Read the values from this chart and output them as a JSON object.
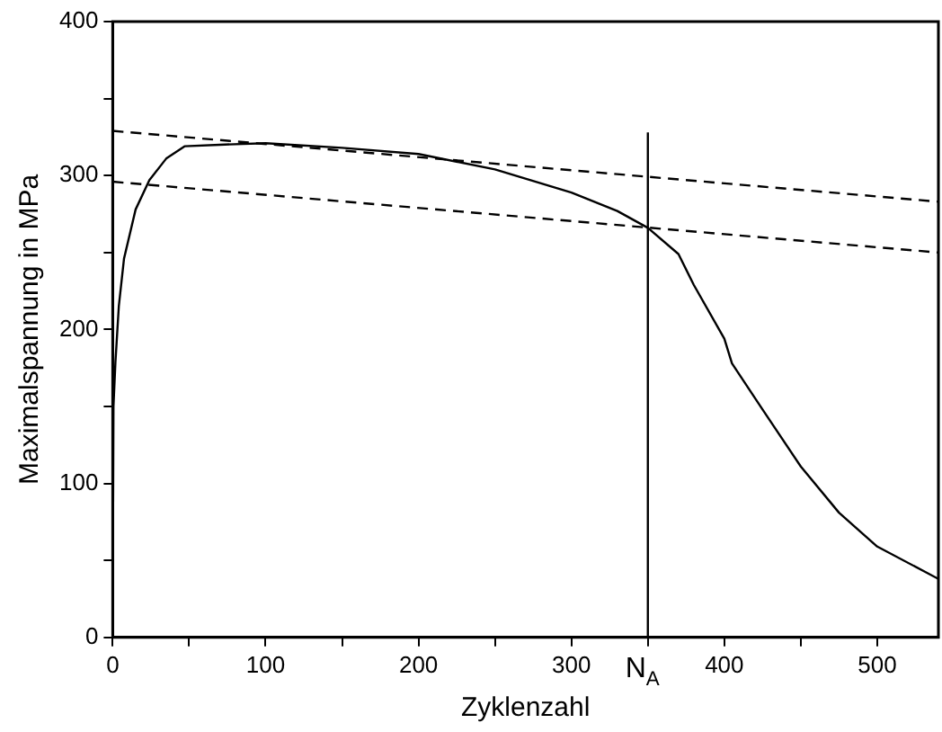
{
  "chart_data": {
    "type": "line",
    "xlabel": "Zyklenzahl",
    "ylabel": "Maximalspannung in MPa",
    "xlim": [
      0,
      540
    ],
    "ylim": [
      0,
      400
    ],
    "xticks": [
      0,
      {
        "value": 50,
        "label": null
      },
      100,
      {
        "value": 150,
        "label": null
      },
      200,
      {
        "value": 250,
        "label": null
      },
      300,
      {
        "value": 350,
        "label": null
      },
      400,
      {
        "value": 450,
        "label": null
      },
      500
    ],
    "yticks": [
      0,
      {
        "value": 50,
        "label": null
      },
      100,
      {
        "value": 150,
        "label": null
      },
      200,
      {
        "value": 250,
        "label": null
      },
      300,
      {
        "value": 350,
        "label": null
      },
      400
    ],
    "grid": false,
    "legend": false,
    "marker": "none",
    "series": [
      {
        "color": "#000000",
        "line_style": "solid",
        "x": [
          0,
          0.5,
          1.8,
          4,
          7.4,
          15,
          24,
          35,
          47,
          70,
          100,
          150,
          200,
          250,
          300,
          330,
          350,
          370,
          380,
          400,
          405,
          425,
          450,
          475,
          500,
          540
        ],
        "values": [
          15,
          150,
          179,
          215,
          246,
          278,
          297,
          311,
          319,
          320,
          321,
          318,
          314,
          304,
          289,
          277,
          266,
          249,
          229,
          194,
          178,
          148,
          111,
          81,
          59,
          38
        ]
      },
      {
        "color": "#000000",
        "line_style": "dashed",
        "x": [
          0,
          540
        ],
        "values": [
          329,
          283
        ]
      },
      {
        "color": "#000000",
        "line_style": "dashed",
        "x": [
          0,
          540
        ],
        "values": [
          296,
          250
        ]
      }
    ],
    "ref_lines": [
      {
        "axis": "x",
        "value": 350,
        "label": "N$_{A}$",
        "color": "#000000"
      }
    ]
  }
}
